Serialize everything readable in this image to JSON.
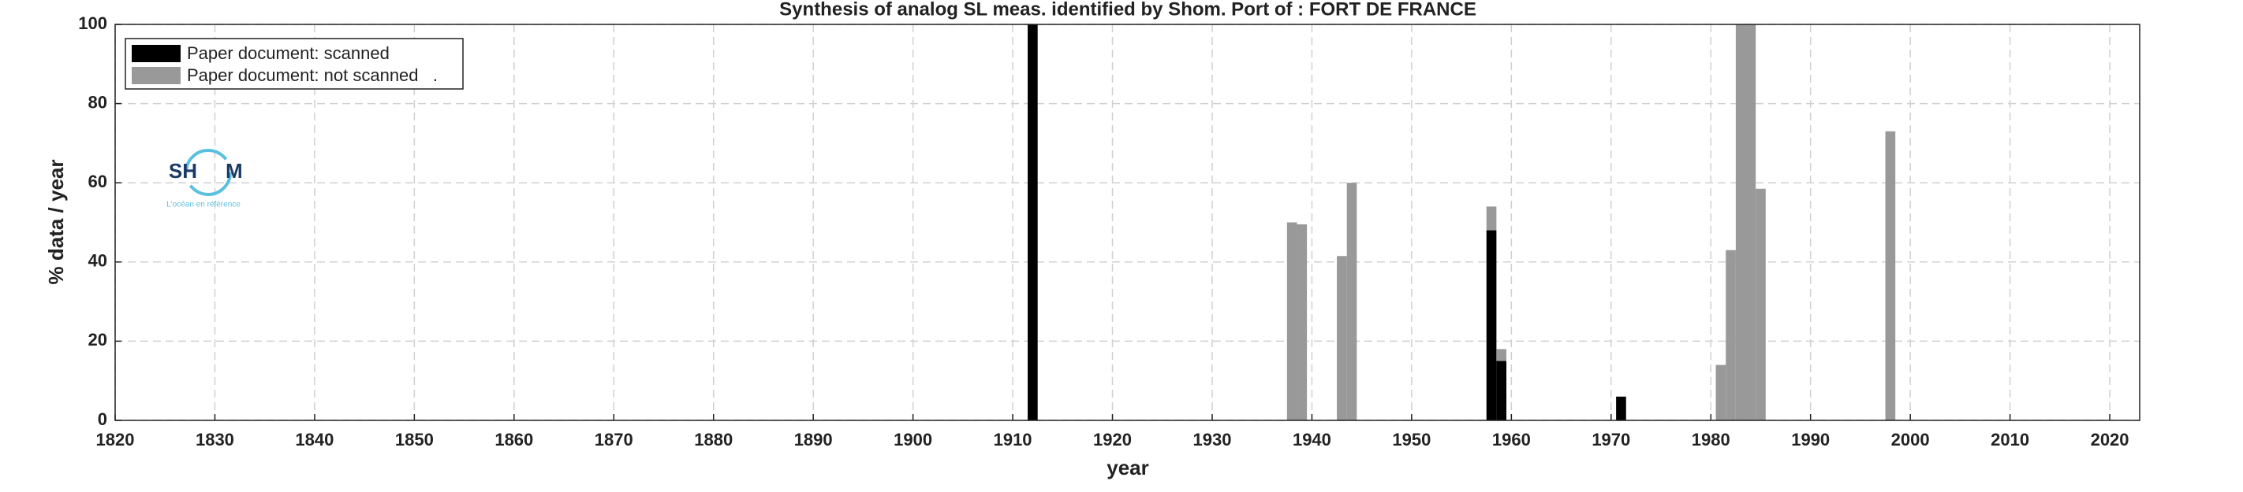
{
  "chart_data": {
    "type": "stacked_bar",
    "title": "Synthesis of analog SL meas. identified by Shom. Port of : FORT DE FRANCE",
    "xlabel": "year",
    "ylabel": "% data / year",
    "x": [
      1912,
      1938,
      1939,
      1943,
      1944,
      1958,
      1959,
      1971,
      1981,
      1982,
      1983,
      1984,
      1985,
      1998
    ],
    "series": [
      {
        "name": "Paper document: scanned",
        "color": "#000000",
        "values": [
          100,
          null,
          null,
          null,
          null,
          48,
          15,
          6,
          null,
          null,
          null,
          null,
          null,
          null
        ]
      },
      {
        "name": "Paper document: not scanned   .",
        "color": "#999999",
        "values": [
          null,
          50,
          49.5,
          41.5,
          60,
          6,
          3,
          null,
          14,
          43,
          100,
          100,
          58.5,
          73
        ]
      }
    ],
    "xlim": [
      1820,
      2023
    ],
    "xticks": [
      1820,
      1830,
      1840,
      1850,
      1860,
      1870,
      1880,
      1890,
      1900,
      1910,
      1920,
      1930,
      1940,
      1950,
      1960,
      1970,
      1980,
      1990,
      2000,
      2010,
      2020
    ],
    "ylim": [
      0,
      100
    ],
    "yticks": [
      0,
      20,
      40,
      60,
      80,
      100
    ],
    "grid": true,
    "legend": "upper left",
    "logo": {
      "left": "SH",
      "right": "M",
      "tagline": "L'océan en référence"
    }
  }
}
